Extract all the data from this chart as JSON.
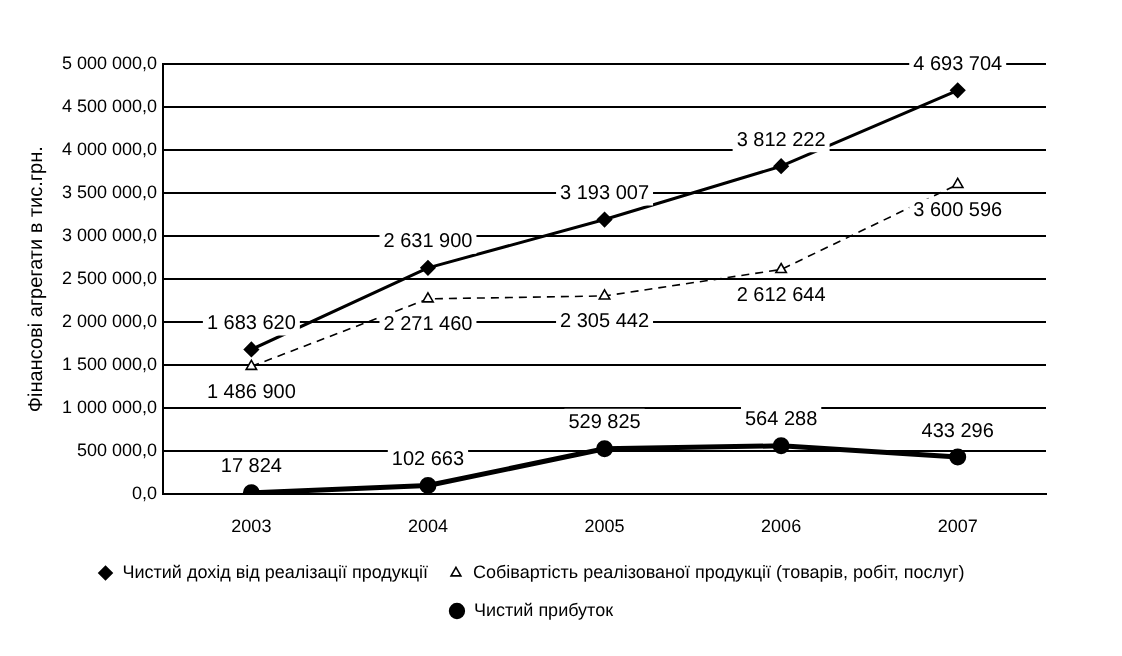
{
  "chart_data": {
    "type": "line",
    "ylabel": "Фінансові агрегати в тис.грн.",
    "categories": [
      "2003",
      "2004",
      "2005",
      "2006",
      "2007"
    ],
    "series": [
      {
        "name": "Чистий дохід від реалізації продукції",
        "color": "#000000",
        "marker": "diamond",
        "values": [
          1683620,
          2631900,
          3193007,
          3812222,
          4693704
        ]
      },
      {
        "name": "Собівартість реалізованої продукції (товарів, робіт, послуг)",
        "color": "#000000",
        "marker": "triangle",
        "line_style": "dashed",
        "values": [
          1486900,
          2271460,
          2305442,
          2612644,
          3600596
        ]
      },
      {
        "name": "Чистий прибуток",
        "color": "#000000",
        "marker": "circle",
        "values": [
          17824,
          102663,
          529825,
          564288,
          433296
        ]
      }
    ],
    "ylim": [
      0,
      5000000
    ],
    "yticks": [
      {
        "value": 0,
        "label": "0,0"
      },
      {
        "value": 500000,
        "label": "500 000,0"
      },
      {
        "value": 1000000,
        "label": "1 000 000,0"
      },
      {
        "value": 1500000,
        "label": "1 500 000,0"
      },
      {
        "value": 2000000,
        "label": "2 000 000,0"
      },
      {
        "value": 2500000,
        "label": "2 500 000,0"
      },
      {
        "value": 3000000,
        "label": "3 000 000,0"
      },
      {
        "value": 3500000,
        "label": "3 500 000,0"
      },
      {
        "value": 4000000,
        "label": "4 000 000,0"
      },
      {
        "value": 4500000,
        "label": "4 500 000,0"
      },
      {
        "value": 5000000,
        "label": "5 000 000,0"
      }
    ],
    "grid": "y",
    "legend": "bottom",
    "data_labels": true
  }
}
